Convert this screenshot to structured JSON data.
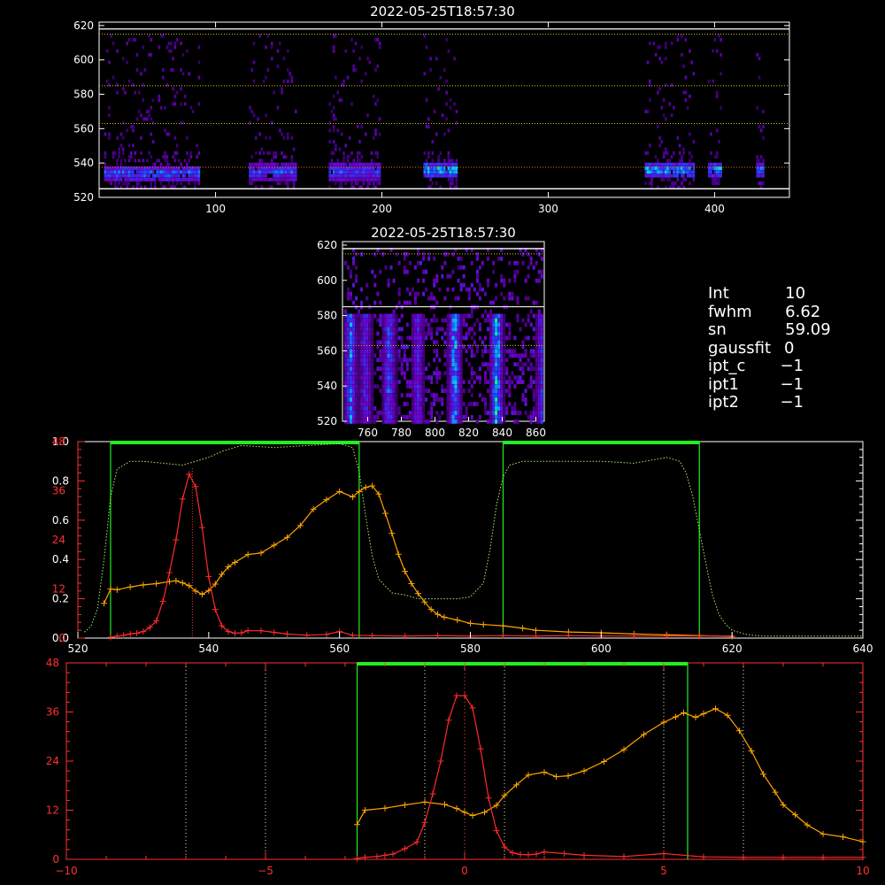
{
  "chart_data": [
    {
      "id": "top",
      "type": "heatmap",
      "title": "2022-05-25T18:57:30",
      "xlim": [
        30,
        445
      ],
      "ylim": [
        520,
        622
      ],
      "xticks": [
        100,
        200,
        300,
        400
      ],
      "yticks": [
        520,
        540,
        560,
        580,
        600,
        620
      ],
      "ref_lines": [
        537.5,
        563,
        585,
        615
      ],
      "white_lines": [
        525,
        618
      ],
      "bands": [
        {
          "x": [
            33,
            90
          ],
          "y_center": 535,
          "intensity": 0.75
        },
        {
          "x": [
            120,
            148
          ],
          "y_center": 536,
          "intensity": 0.7
        },
        {
          "x": [
            168,
            198
          ],
          "y_center": 536,
          "intensity": 0.7
        },
        {
          "x": [
            225,
            245
          ],
          "y_center": 537,
          "intensity": 0.95
        },
        {
          "x": [
            358,
            387
          ],
          "y_center": 537,
          "intensity": 0.9
        },
        {
          "x": [
            396,
            404
          ],
          "y_center": 537,
          "intensity": 0.9
        },
        {
          "x": [
            425,
            429
          ],
          "y_center": 537,
          "intensity": 0.8
        }
      ]
    },
    {
      "id": "mid",
      "type": "heatmap",
      "title": "2022-05-25T18:57:30",
      "xlim": [
        745,
        865
      ],
      "ylim": [
        520,
        622
      ],
      "xticks": [
        760,
        780,
        800,
        820,
        840,
        860
      ],
      "yticks": [
        520,
        540,
        560,
        580,
        600,
        620
      ],
      "ref_lines": [
        563,
        585,
        615
      ],
      "streaks": [
        {
          "x": 749,
          "intensity": 0.8
        },
        {
          "x": 758,
          "intensity": 0.6
        },
        {
          "x": 772,
          "intensity": 0.75
        },
        {
          "x": 789,
          "intensity": 0.55
        },
        {
          "x": 811,
          "intensity": 0.9
        },
        {
          "x": 836,
          "intensity": 1.0
        },
        {
          "x": 863,
          "intensity": 0.6
        }
      ]
    },
    {
      "id": "spectrum",
      "type": "line",
      "xlim": [
        520,
        640
      ],
      "ylim_left": [
        0,
        1.0
      ],
      "ylim_right": [
        0,
        48
      ],
      "xticks": [
        520,
        540,
        560,
        580,
        600,
        620,
        640
      ],
      "yticks_left": [
        "0.0",
        "0.2",
        "0.4",
        "0.6",
        "0.8",
        "1.0"
      ],
      "yticks_right": [
        0,
        12,
        24,
        36,
        48
      ],
      "windows": [
        [
          525,
          563
        ],
        [
          585,
          615
        ]
      ],
      "peak_marker": 537.5,
      "series": [
        {
          "color": "#ff2a2a",
          "x": [
            525,
            526,
            527,
            528,
            529,
            530,
            531,
            532,
            533,
            534,
            535,
            536,
            537,
            538,
            539,
            540,
            541,
            542,
            543,
            544,
            545,
            546,
            548,
            550,
            552,
            555,
            558,
            560,
            562,
            565,
            570,
            575,
            580,
            585,
            590,
            595,
            600,
            605,
            610,
            615,
            620
          ],
          "values": [
            0.2,
            0.5,
            0.7,
            1.0,
            1.2,
            1.6,
            2.6,
            4.2,
            9,
            16,
            24,
            34,
            40,
            37,
            27,
            15,
            7,
            3,
            1.6,
            1.2,
            1.3,
            1.8,
            1.8,
            1.4,
            1.0,
            0.7,
            0.9,
            1.6,
            0.7,
            0.6,
            0.5,
            0.6,
            0.5,
            0.6,
            0.5,
            0.6,
            0.5,
            0.5,
            0.5,
            0.5,
            0.5
          ]
        },
        {
          "color": "#ffa500",
          "x": [
            524,
            525,
            526,
            528,
            530,
            532,
            534,
            535,
            536,
            537,
            538,
            539,
            540,
            541,
            542,
            543,
            544,
            546,
            548,
            550,
            552,
            554,
            556,
            558,
            560,
            562,
            563,
            564,
            565,
            566,
            567,
            568,
            569,
            570,
            571,
            572,
            573,
            574,
            575,
            576,
            578,
            580,
            582,
            585,
            588,
            590,
            595,
            600,
            605,
            610,
            615,
            620
          ],
          "values": [
            8.5,
            12,
            11.8,
            12.5,
            13,
            13.3,
            13.8,
            14,
            13.5,
            12.8,
            11.5,
            10.7,
            11.6,
            13.2,
            15.6,
            17.4,
            18.5,
            20.4,
            20.8,
            22.7,
            24.6,
            27.5,
            31.5,
            33.8,
            35.8,
            34.5,
            35.8,
            36.8,
            37.2,
            35.2,
            30.5,
            25.6,
            20.5,
            16.3,
            13.3,
            10.9,
            8.8,
            7.0,
            5.8,
            5.1,
            4.4,
            3.6,
            3.3,
            3.0,
            2.4,
            1.9,
            1.5,
            1.3,
            1.0,
            0.8,
            0.6,
            0.4
          ]
        },
        {
          "color": "#a8f06a",
          "dotted": true,
          "axis": "left",
          "x": [
            521,
            522,
            523,
            524,
            525,
            526,
            527,
            528,
            529,
            530,
            533,
            536,
            538,
            540,
            542,
            545,
            550,
            555,
            560,
            562,
            563,
            564,
            565,
            566,
            568,
            570,
            572,
            575,
            578,
            580,
            582,
            583,
            584,
            585,
            586,
            588,
            590,
            595,
            600,
            605,
            610,
            612,
            613,
            614,
            615,
            616,
            617,
            618,
            619,
            620,
            621,
            622,
            623,
            625,
            630,
            635,
            640
          ],
          "values": [
            0.03,
            0.06,
            0.15,
            0.4,
            0.72,
            0.86,
            0.88,
            0.9,
            0.9,
            0.9,
            0.89,
            0.88,
            0.9,
            0.92,
            0.95,
            0.98,
            0.97,
            0.98,
            0.99,
            0.97,
            0.85,
            0.62,
            0.42,
            0.3,
            0.23,
            0.22,
            0.2,
            0.2,
            0.2,
            0.21,
            0.28,
            0.45,
            0.68,
            0.82,
            0.88,
            0.9,
            0.9,
            0.9,
            0.9,
            0.89,
            0.92,
            0.9,
            0.84,
            0.72,
            0.55,
            0.38,
            0.22,
            0.12,
            0.07,
            0.04,
            0.03,
            0.02,
            0.015,
            0.01,
            0.01,
            0.01,
            0.01
          ]
        }
      ]
    },
    {
      "id": "velocity",
      "type": "line",
      "xlim": [
        -10,
        10
      ],
      "ylim": [
        0,
        48
      ],
      "xticks": [
        -10,
        -5,
        0,
        5,
        10
      ],
      "yticks": [
        0,
        12,
        24,
        36,
        48
      ],
      "window": [
        -2.7,
        5.6
      ],
      "dotted_verticals": [
        -7,
        -5,
        -1,
        0,
        1,
        5,
        7
      ],
      "series": [
        {
          "color": "#ff2a2a",
          "x": [
            -2.7,
            -2.5,
            -2.2,
            -2.0,
            -1.8,
            -1.5,
            -1.2,
            -1.0,
            -0.8,
            -0.6,
            -0.4,
            -0.2,
            0.0,
            0.2,
            0.4,
            0.6,
            0.8,
            1.0,
            1.2,
            1.4,
            1.6,
            1.8,
            2.0,
            2.5,
            3.0,
            4.0,
            5.0,
            6.0,
            7.0,
            8.0,
            9.0,
            10.0
          ],
          "values": [
            0.2,
            0.5,
            0.7,
            1.0,
            1.3,
            2.6,
            4.2,
            9,
            16,
            24,
            34,
            40,
            40,
            37,
            27,
            15,
            7,
            3,
            1.6,
            1.2,
            1.1,
            1.3,
            1.8,
            1.4,
            1.0,
            0.7,
            1.4,
            0.6,
            0.5,
            0.5,
            0.5,
            0.5
          ]
        },
        {
          "color": "#ffa500",
          "x": [
            -2.7,
            -2.5,
            -2.0,
            -1.5,
            -1.0,
            -0.5,
            -0.2,
            0.0,
            0.2,
            0.5,
            0.8,
            1.0,
            1.3,
            1.6,
            2.0,
            2.3,
            2.6,
            3.0,
            3.5,
            4.0,
            4.5,
            5.0,
            5.3,
            5.5,
            5.8,
            6.0,
            6.3,
            6.6,
            6.9,
            7.2,
            7.5,
            7.8,
            8.0,
            8.3,
            8.6,
            9.0,
            9.5,
            10.0
          ],
          "values": [
            8.5,
            12,
            12.5,
            13.3,
            14,
            13.4,
            12.4,
            11.5,
            10.7,
            11.5,
            13.2,
            15.6,
            18.2,
            20.6,
            21.3,
            20.2,
            20.4,
            21.6,
            23.9,
            26.8,
            30.5,
            33.5,
            34.8,
            35.8,
            34.7,
            35.6,
            36.8,
            35.2,
            31.4,
            26.5,
            20.8,
            16.4,
            13.3,
            10.9,
            8.4,
            6.2,
            5.5,
            4.3
          ]
        }
      ]
    }
  ],
  "info": {
    "rows": [
      {
        "key": "Int",
        "value": "   10"
      },
      {
        "key": "fwhm",
        "value": "   6.62"
      },
      {
        "key": "sn",
        "value": "   59.09"
      },
      {
        "key": "gaussfit",
        "value": "0"
      },
      {
        "key": "ipt_c",
        "value": "  −1"
      },
      {
        "key": "ipt1",
        "value": "  −1"
      },
      {
        "key": "ipt2",
        "value": "  −1"
      }
    ]
  }
}
